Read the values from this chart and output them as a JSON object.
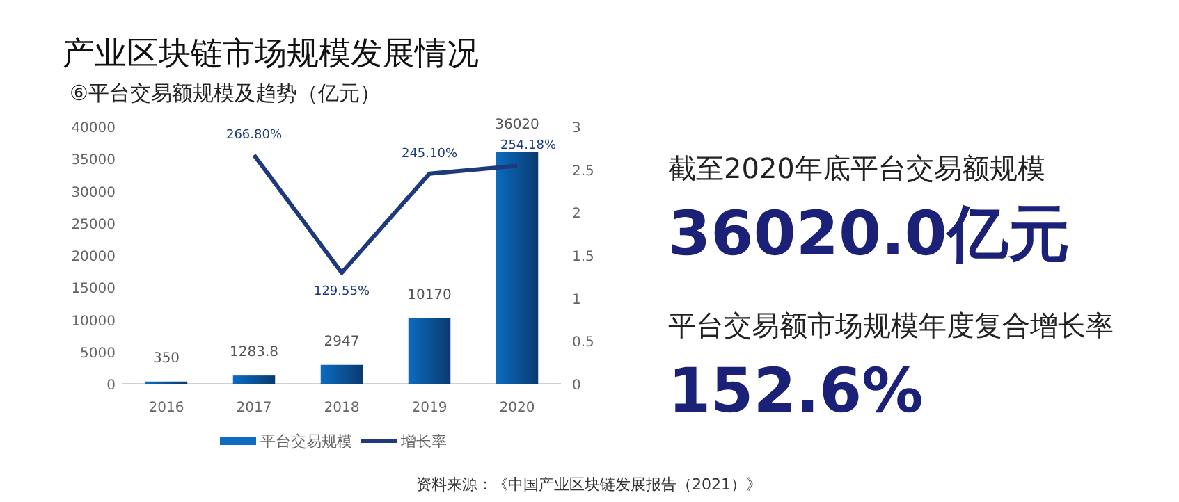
{
  "chart_data": [
    {
      "type": "bar",
      "title": "产业区块链市场规模发展情况",
      "subtitle": "⑥平台交易额规模及趋势（亿元）",
      "categories": [
        "2016",
        "2017",
        "2018",
        "2019",
        "2020"
      ],
      "series": [
        {
          "name": "平台交易规模",
          "type": "bar",
          "color": "#0b6cc0",
          "values": [
            350,
            1283.8,
            2947,
            10170,
            36020
          ],
          "value_labels": [
            "350",
            "1283.8",
            "2947",
            "10170",
            "36020"
          ]
        },
        {
          "name": "增长率",
          "type": "line",
          "axis": "y2",
          "color": "#1f3a7a",
          "values": [
            null,
            2.668,
            1.2955,
            2.451,
            2.5418
          ],
          "value_labels": [
            null,
            "266.80%",
            "129.55%",
            "245.10%",
            "254.18%"
          ]
        }
      ],
      "ylim": [
        0,
        40000
      ],
      "yticks": [
        0,
        5000,
        10000,
        15000,
        20000,
        25000,
        30000,
        35000,
        40000
      ],
      "y2lim": [
        0,
        3
      ],
      "y2ticks": [
        0,
        0.5,
        1,
        1.5,
        2,
        2.5,
        3
      ],
      "legend": "bottom",
      "marker": "none",
      "annotations": [
        "资料来源：《中国产业区块链发展报告（2021）》"
      ]
    },
    {
      "type": "other",
      "annotations": [
        "截至2020年底平台交易额规模",
        "36020.0亿元",
        "平台交易额市场规模年度复合增长率",
        "152.6%"
      ]
    }
  ]
}
